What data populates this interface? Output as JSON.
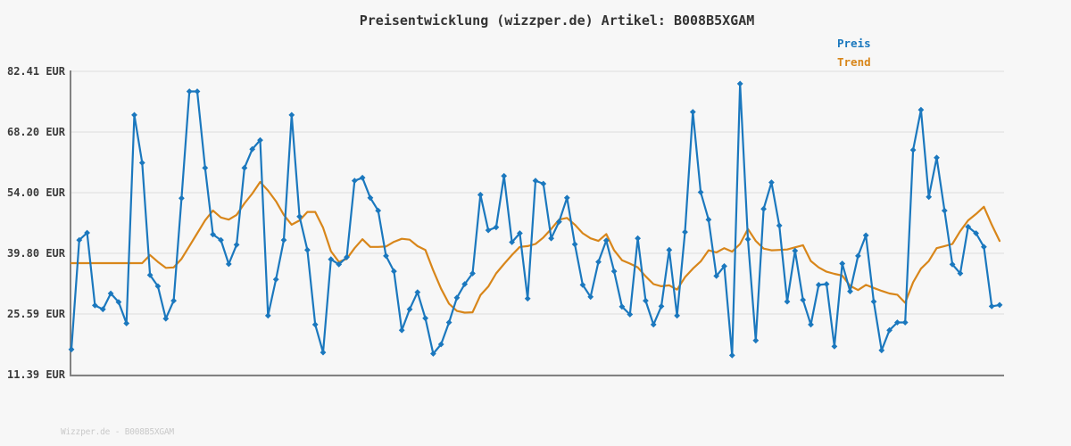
{
  "title": "Preisentwicklung (wizzper.de) Artikel: B008B5XGAM",
  "watermark": "Wizzper.de - B008B5XGAM",
  "legend": {
    "preis": "Preis",
    "trend": "Trend"
  },
  "colors": {
    "preis": "#1b78be",
    "trend": "#d8861a",
    "grid": "#e3e3e3",
    "axis": "#828282",
    "background": "#f7f7f7",
    "title_text": "#333333",
    "tick_text": "#3a3a3a",
    "watermark_text": "#c9c9c9"
  },
  "chart_data": {
    "type": "line",
    "title": "Preisentwicklung (wizzper.de) Artikel: B008B5XGAM",
    "xlabel": "",
    "ylabel": "EUR",
    "ylim": [
      11.39,
      82.41
    ],
    "yticks": [
      {
        "value": 82.41,
        "label": "82.41 EUR"
      },
      {
        "value": 68.2,
        "label": "68.20 EUR"
      },
      {
        "value": 54.0,
        "label": "54.00 EUR"
      },
      {
        "value": 39.8,
        "label": "39.80 EUR"
      },
      {
        "value": 25.59,
        "label": "25.59 EUR"
      },
      {
        "value": 11.39,
        "label": "11.39 EUR"
      }
    ],
    "grid": "horizontal",
    "legend_position": "top-right",
    "x_count": 119,
    "series": [
      {
        "name": "Preis",
        "color": "#1b78be",
        "marker": "diamond",
        "values": [
          17.3,
          42.9,
          44.6,
          27.6,
          26.7,
          30.4,
          28.4,
          23.4,
          72.2,
          61.0,
          34.7,
          32.1,
          24.5,
          28.7,
          52.7,
          77.7,
          77.7,
          59.8,
          44.2,
          42.9,
          37.3,
          41.8,
          59.8,
          64.2,
          66.3,
          25.2,
          33.7,
          42.9,
          72.2,
          48.4,
          40.6,
          23.1,
          16.6,
          38.4,
          37.2,
          38.9,
          56.8,
          57.5,
          52.8,
          49.8,
          39.2,
          35.6,
          21.8,
          26.7,
          30.7,
          24.6,
          16.3,
          18.5,
          23.6,
          29.4,
          32.6,
          35.1,
          53.5,
          45.2,
          45.9,
          57.9,
          42.4,
          44.5,
          29.2,
          56.8,
          56.1,
          43.3,
          47.2,
          52.8,
          41.9,
          32.4,
          29.6,
          37.8,
          42.8,
          35.6,
          27.3,
          25.5,
          43.3,
          28.7,
          23.1,
          27.4,
          40.6,
          25.2,
          44.8,
          72.9,
          54.1,
          47.7,
          34.5,
          36.8,
          15.9,
          79.5,
          43.1,
          19.4,
          50.2,
          56.4,
          46.3,
          28.5,
          40.4,
          28.9,
          23.1,
          32.4,
          32.6,
          18.0,
          37.4,
          30.9,
          39.2,
          44.0,
          28.5,
          17.1,
          21.8,
          23.6,
          23.6,
          64.0,
          73.4,
          53.0,
          62.2,
          49.8,
          37.2,
          35.1,
          46.0,
          44.5,
          41.3,
          27.4,
          27.7
        ]
      },
      {
        "name": "Trend",
        "color": "#d8861a",
        "marker": "none",
        "values": [
          37.5,
          37.5,
          37.5,
          37.5,
          37.5,
          37.5,
          37.5,
          37.5,
          37.5,
          37.5,
          39.4,
          37.8,
          36.4,
          36.5,
          38.5,
          41.5,
          44.5,
          47.5,
          49.8,
          48.2,
          47.7,
          48.8,
          51.5,
          53.8,
          56.5,
          54.5,
          52.0,
          48.8,
          46.5,
          47.5,
          49.5,
          49.5,
          45.8,
          40.3,
          37.8,
          38.5,
          41.0,
          43.1,
          41.3,
          41.3,
          41.4,
          42.5,
          43.2,
          43.0,
          41.5,
          40.6,
          35.8,
          31.5,
          28.0,
          26.3,
          25.9,
          26.0,
          30.0,
          32.0,
          35.1,
          37.3,
          39.4,
          41.3,
          41.5,
          42.0,
          43.5,
          45.5,
          47.7,
          48.1,
          46.5,
          44.5,
          43.3,
          42.7,
          44.3,
          40.5,
          38.2,
          37.4,
          36.5,
          34.4,
          32.6,
          32.1,
          32.3,
          31.3,
          34.2,
          36.2,
          37.9,
          40.5,
          40.0,
          41.0,
          40.2,
          42.0,
          45.5,
          42.7,
          40.9,
          40.5,
          40.6,
          40.7,
          41.2,
          41.7,
          38.0,
          36.5,
          35.5,
          35.0,
          34.6,
          32.2,
          31.2,
          32.4,
          31.7,
          31.0,
          30.4,
          30.1,
          28.2,
          33.0,
          36.2,
          38.0,
          41.0,
          41.5,
          42.0,
          45.0,
          47.5,
          49.0,
          50.7,
          46.5,
          42.7
        ]
      }
    ]
  }
}
